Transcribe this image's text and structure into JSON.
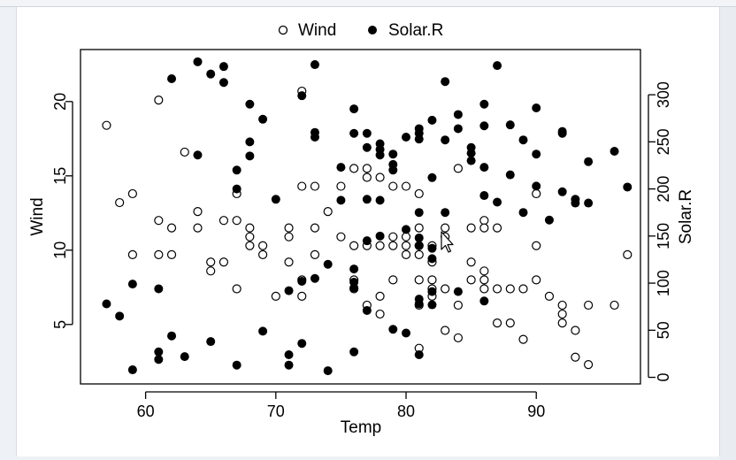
{
  "chart_data": {
    "type": "scatter",
    "title": "",
    "xlabel": "Temp",
    "ylabel": "Wind",
    "y2label": "Solar.R",
    "xlim": [
      55,
      98
    ],
    "ylim": [
      1.0,
      23.5
    ],
    "y2lim": [
      -7,
      348
    ],
    "x_ticks": [
      60,
      70,
      80,
      90
    ],
    "y_ticks": [
      5,
      10,
      15,
      20
    ],
    "y2_ticks": [
      0,
      50,
      100,
      150,
      200,
      250,
      300
    ],
    "legend_position": "top",
    "grid": false,
    "series": [
      {
        "name": "Wind",
        "marker": "open-circle",
        "axis": "left",
        "points": [
          [
            57,
            18.4
          ],
          [
            58,
            13.2
          ],
          [
            59,
            13.8
          ],
          [
            59,
            9.7
          ],
          [
            61,
            20.1
          ],
          [
            61,
            12.0
          ],
          [
            61,
            9.7
          ],
          [
            62,
            11.5
          ],
          [
            62,
            9.7
          ],
          [
            63,
            16.6
          ],
          [
            64,
            12.6
          ],
          [
            64,
            11.5
          ],
          [
            65,
            9.2
          ],
          [
            65,
            8.6
          ],
          [
            66,
            12.0
          ],
          [
            66,
            9.2
          ],
          [
            67,
            13.8
          ],
          [
            67,
            12.0
          ],
          [
            67,
            7.4
          ],
          [
            68,
            11.5
          ],
          [
            68,
            10.9
          ],
          [
            68,
            10.3
          ],
          [
            69,
            10.3
          ],
          [
            69,
            9.7
          ],
          [
            70,
            6.9
          ],
          [
            71,
            11.5
          ],
          [
            71,
            10.9
          ],
          [
            71,
            9.2
          ],
          [
            72,
            20.7
          ],
          [
            72,
            14.3
          ],
          [
            72,
            8.0
          ],
          [
            72,
            6.9
          ],
          [
            73,
            14.3
          ],
          [
            73,
            11.5
          ],
          [
            73,
            9.7
          ],
          [
            74,
            12.6
          ],
          [
            75,
            14.3
          ],
          [
            75,
            10.9
          ],
          [
            76,
            15.5
          ],
          [
            76,
            10.3
          ],
          [
            76,
            8.0
          ],
          [
            76,
            7.4
          ],
          [
            77,
            15.5
          ],
          [
            77,
            14.9
          ],
          [
            77,
            10.3
          ],
          [
            77,
            6.3
          ],
          [
            78,
            14.9
          ],
          [
            78,
            10.3
          ],
          [
            78,
            6.9
          ],
          [
            78,
            5.7
          ],
          [
            79,
            14.3
          ],
          [
            79,
            10.9
          ],
          [
            79,
            10.3
          ],
          [
            79,
            8.0
          ],
          [
            80,
            14.3
          ],
          [
            80,
            10.9
          ],
          [
            80,
            10.3
          ],
          [
            80,
            9.7
          ],
          [
            81,
            13.8
          ],
          [
            81,
            11.5
          ],
          [
            81,
            10.3
          ],
          [
            81,
            9.7
          ],
          [
            81,
            8.0
          ],
          [
            81,
            6.3
          ],
          [
            81,
            3.4
          ],
          [
            82,
            10.3
          ],
          [
            82,
            9.2
          ],
          [
            82,
            8.0
          ],
          [
            82,
            7.4
          ],
          [
            82,
            6.9
          ],
          [
            83,
            11.5
          ],
          [
            83,
            10.9
          ],
          [
            83,
            7.4
          ],
          [
            83,
            4.6
          ],
          [
            84,
            15.5
          ],
          [
            84,
            6.3
          ],
          [
            84,
            4.1
          ],
          [
            85,
            11.5
          ],
          [
            85,
            9.2
          ],
          [
            85,
            8.0
          ],
          [
            86,
            12.0
          ],
          [
            86,
            11.5
          ],
          [
            86,
            8.6
          ],
          [
            86,
            8.0
          ],
          [
            86,
            7.4
          ],
          [
            87,
            11.5
          ],
          [
            87,
            7.4
          ],
          [
            87,
            5.1
          ],
          [
            88,
            7.4
          ],
          [
            88,
            5.1
          ],
          [
            89,
            7.4
          ],
          [
            89,
            4.0
          ],
          [
            90,
            13.8
          ],
          [
            90,
            10.3
          ],
          [
            90,
            8.0
          ],
          [
            91,
            6.9
          ],
          [
            92,
            6.3
          ],
          [
            92,
            5.7
          ],
          [
            92,
            5.1
          ],
          [
            93,
            4.6
          ],
          [
            93,
            2.8
          ],
          [
            94,
            6.3
          ],
          [
            94,
            2.3
          ],
          [
            96,
            6.3
          ],
          [
            97,
            9.7
          ]
        ]
      },
      {
        "name": "Solar.R",
        "marker": "filled-circle",
        "axis": "right",
        "points": [
          [
            57,
            78
          ],
          [
            58,
            65
          ],
          [
            59,
            8
          ],
          [
            59,
            99
          ],
          [
            61,
            94
          ],
          [
            61,
            19
          ],
          [
            61,
            27
          ],
          [
            62,
            317
          ],
          [
            62,
            44
          ],
          [
            63,
            22
          ],
          [
            64,
            335
          ],
          [
            64,
            236
          ],
          [
            65,
            322
          ],
          [
            65,
            38
          ],
          [
            66,
            330
          ],
          [
            66,
            313
          ],
          [
            67,
            220
          ],
          [
            67,
            200
          ],
          [
            67,
            13
          ],
          [
            68,
            290
          ],
          [
            68,
            250
          ],
          [
            68,
            235
          ],
          [
            69,
            274
          ],
          [
            69,
            49
          ],
          [
            70,
            189
          ],
          [
            71,
            92
          ],
          [
            71,
            24
          ],
          [
            71,
            13
          ],
          [
            72,
            299
          ],
          [
            72,
            102
          ],
          [
            72,
            36
          ],
          [
            73,
            332
          ],
          [
            73,
            260
          ],
          [
            73,
            255
          ],
          [
            73,
            105
          ],
          [
            74,
            120
          ],
          [
            74,
            7
          ],
          [
            75,
            223
          ],
          [
            75,
            188
          ],
          [
            76,
            285
          ],
          [
            76,
            259
          ],
          [
            76,
            115
          ],
          [
            76,
            101
          ],
          [
            76,
            95
          ],
          [
            76,
            27
          ],
          [
            77,
            259
          ],
          [
            77,
            244
          ],
          [
            77,
            189
          ],
          [
            77,
            145
          ],
          [
            77,
            71
          ],
          [
            78,
            248
          ],
          [
            78,
            242
          ],
          [
            78,
            236
          ],
          [
            78,
            188
          ],
          [
            78,
            150
          ],
          [
            79,
            237
          ],
          [
            79,
            220
          ],
          [
            79,
            226
          ],
          [
            79,
            51
          ],
          [
            80,
            255
          ],
          [
            80,
            157
          ],
          [
            80,
            47
          ],
          [
            81,
            264
          ],
          [
            81,
            259
          ],
          [
            81,
            253
          ],
          [
            81,
            175
          ],
          [
            81,
            148
          ],
          [
            81,
            140
          ],
          [
            81,
            78
          ],
          [
            81,
            83
          ],
          [
            81,
            24
          ],
          [
            82,
            273
          ],
          [
            82,
            212
          ],
          [
            82,
            137
          ],
          [
            82,
            126
          ],
          [
            82,
            91
          ],
          [
            82,
            77
          ],
          [
            83,
            314
          ],
          [
            83,
            252
          ],
          [
            83,
            175
          ],
          [
            84,
            279
          ],
          [
            84,
            264
          ],
          [
            84,
            91
          ],
          [
            85,
            244
          ],
          [
            85,
            238
          ],
          [
            85,
            230
          ],
          [
            86,
            290
          ],
          [
            86,
            267
          ],
          [
            86,
            223
          ],
          [
            86,
            193
          ],
          [
            86,
            81
          ],
          [
            87,
            331
          ],
          [
            87,
            186
          ],
          [
            88,
            268
          ],
          [
            88,
            215
          ],
          [
            89,
            252
          ],
          [
            89,
            175
          ],
          [
            90,
            286
          ],
          [
            90,
            237
          ],
          [
            90,
            203
          ],
          [
            91,
            167
          ],
          [
            92,
            261
          ],
          [
            92,
            259
          ],
          [
            92,
            197
          ],
          [
            93,
            189
          ],
          [
            93,
            185
          ],
          [
            94,
            229
          ],
          [
            94,
            185
          ],
          [
            96,
            240
          ],
          [
            97,
            202
          ]
        ]
      }
    ]
  }
}
